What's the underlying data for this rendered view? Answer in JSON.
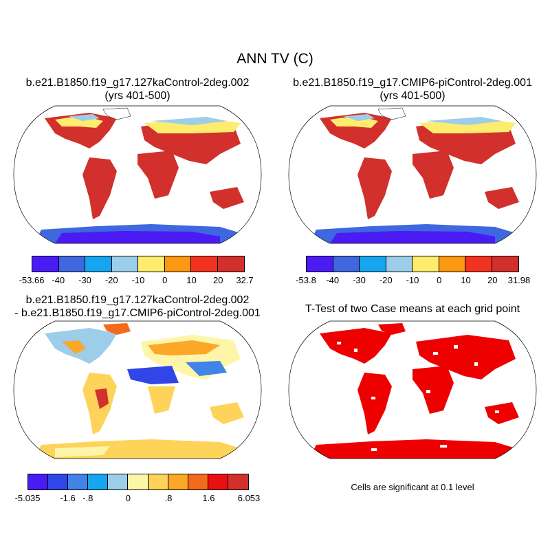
{
  "figure_title": "ANN TV (C)",
  "panels": {
    "top_left": {
      "title_line1": "b.e21.B1850.f19_g17.127kaControl-2deg.002",
      "title_line2": "(yrs 401-500)",
      "colorbar": {
        "colors": [
          "#4a1bf3",
          "#3f67e0",
          "#16a6f0",
          "#9ccde9",
          "#fdec6d",
          "#fb9812",
          "#f2331f",
          "#d1302c"
        ],
        "labels": [
          "-53.66",
          "-40",
          "-30",
          "-20",
          "-10",
          "0",
          "10",
          "20",
          "32.7"
        ]
      }
    },
    "top_right": {
      "title_line1": "b.e21.B1850.f19_g17.CMIP6-piControl-2deg.001",
      "title_line2": "(yrs 401-500)",
      "colorbar": {
        "colors": [
          "#4a1bf3",
          "#3f67e0",
          "#16a6f0",
          "#9ccde9",
          "#fdec6d",
          "#fb9812",
          "#f2331f",
          "#d1302c"
        ],
        "labels": [
          "-53.8",
          "-40",
          "-30",
          "-20",
          "-10",
          "0",
          "10",
          "20",
          "31.98"
        ]
      }
    },
    "bottom_left": {
      "title_line1": "b.e21.B1850.f19_g17.127kaControl-2deg.002",
      "title_line2": "- b.e21.B1850.f19_g17.CMIP6-piControl-2deg.001",
      "colorbar": {
        "colors": [
          "#4a1bf3",
          "#3046e6",
          "#3f84e6",
          "#16a6f0",
          "#9ccde9",
          "#fdf5a8",
          "#fdd35a",
          "#fba728",
          "#f26a1c",
          "#e81010",
          "#d1302c"
        ],
        "labels": [
          "-5.035",
          "-1.6",
          "-.8",
          "0",
          ".8",
          "1.6",
          "6.053"
        ],
        "label_slots": [
          0,
          2,
          3,
          5,
          7,
          9,
          11
        ]
      }
    },
    "bottom_right": {
      "title_line1": "T-Test of two Case means at each grid point",
      "note": "Cells are significant at 0.1 level",
      "significance_color": "#ee0000"
    }
  }
}
